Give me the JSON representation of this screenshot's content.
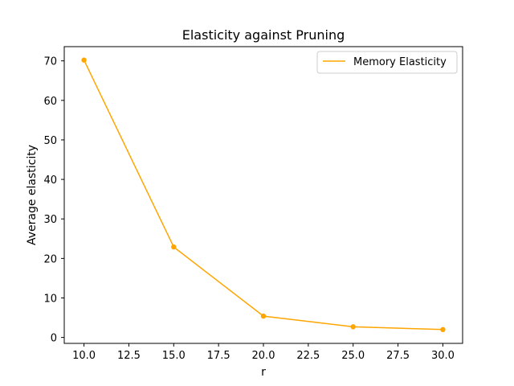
{
  "chart_data": {
    "type": "line",
    "title": "Elasticity against Pruning",
    "xlabel": "r",
    "ylabel": "Average elasticity",
    "xlim": [
      8.9,
      31.1
    ],
    "ylim": [
      -1.5,
      73.6
    ],
    "xticks": [
      10,
      12.5,
      15,
      17.5,
      20,
      22.5,
      25,
      27.5,
      30
    ],
    "xtick_labels": [
      "10.0",
      "12.5",
      "15.0",
      "17.5",
      "20.0",
      "22.5",
      "25.0",
      "27.5",
      "30.0"
    ],
    "yticks": [
      0,
      10,
      20,
      30,
      40,
      50,
      60,
      70
    ],
    "ytick_labels": [
      "0",
      "10",
      "20",
      "30",
      "40",
      "50",
      "60",
      "70"
    ],
    "grid": false,
    "legend_position": "top-right",
    "series": [
      {
        "name": "Memory Elasticity",
        "color": "#ffa500",
        "marker": "circle",
        "x": [
          10,
          15,
          20,
          25,
          30
        ],
        "y": [
          70.2,
          22.9,
          5.4,
          2.7,
          2.0
        ]
      }
    ]
  }
}
